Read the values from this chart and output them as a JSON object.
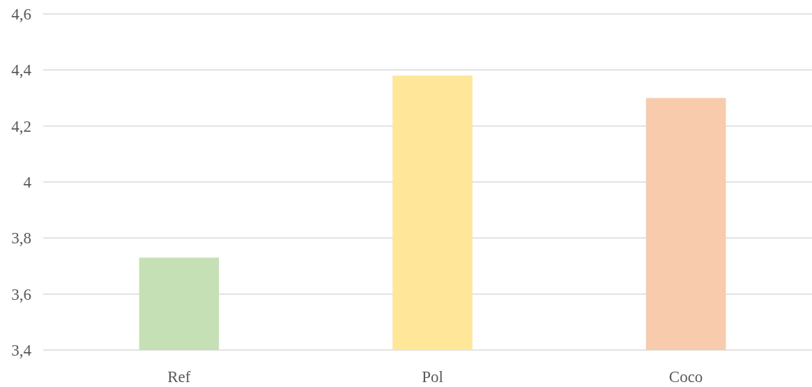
{
  "chart_data": {
    "type": "bar",
    "categories": [
      "Ref",
      "Pol",
      "Coco"
    ],
    "values": [
      3.73,
      4.38,
      4.3
    ],
    "colors": [
      "#c5e0b4",
      "#ffe699",
      "#f8cbad"
    ],
    "ylim": [
      3.4,
      4.6
    ],
    "yticks": [
      {
        "value": 3.4,
        "label": "3,4"
      },
      {
        "value": 3.6,
        "label": "3,6"
      },
      {
        "value": 3.8,
        "label": "3,8"
      },
      {
        "value": 4,
        "label": "4"
      },
      {
        "value": 4.2,
        "label": "4,2"
      },
      {
        "value": 4.4,
        "label": "4,4"
      },
      {
        "value": 4.6,
        "label": "4,6"
      }
    ],
    "grid": "y"
  }
}
